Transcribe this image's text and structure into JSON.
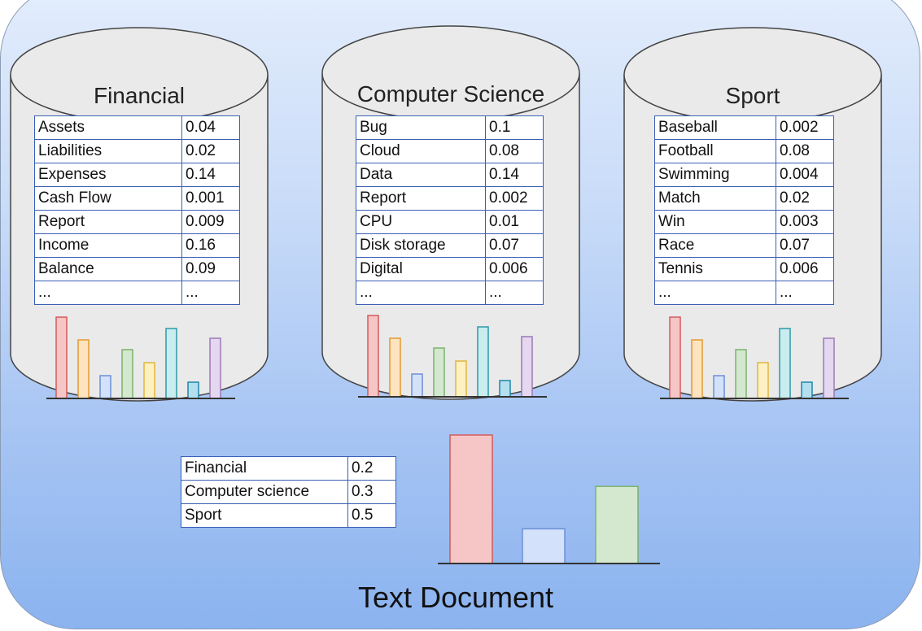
{
  "topics": [
    {
      "name": "Financial",
      "rows": [
        {
          "word": "Assets",
          "value": "0.04"
        },
        {
          "word": "Liabilities",
          "value": "0.02"
        },
        {
          "word": "Expenses",
          "value": "0.14"
        },
        {
          "word": "Cash Flow",
          "value": "0.001"
        },
        {
          "word": "Report",
          "value": "0.009"
        },
        {
          "word": "Income",
          "value": "0.16"
        },
        {
          "word": "Balance",
          "value": "0.09"
        },
        {
          "word": "...",
          "value": "..."
        }
      ]
    },
    {
      "name": "Computer Science",
      "rows": [
        {
          "word": "Bug",
          "value": "0.1"
        },
        {
          "word": "Cloud",
          "value": "0.08"
        },
        {
          "word": "Data",
          "value": "0.14"
        },
        {
          "word": "Report",
          "value": "0.002"
        },
        {
          "word": "CPU",
          "value": "0.01"
        },
        {
          "word": "Disk storage",
          "value": "0.07"
        },
        {
          "word": "Digital",
          "value": "0.006"
        },
        {
          "word": "...",
          "value": "..."
        }
      ]
    },
    {
      "name": "Sport",
      "rows": [
        {
          "word": "Baseball",
          "value": "0.002"
        },
        {
          "word": "Football",
          "value": "0.08"
        },
        {
          "word": "Swimming",
          "value": "0.004"
        },
        {
          "word": "Match",
          "value": "0.02"
        },
        {
          "word": "Win",
          "value": "0.003"
        },
        {
          "word": "Race",
          "value": "0.07"
        },
        {
          "word": "Tennis",
          "value": "0.006"
        },
        {
          "word": "...",
          "value": "..."
        }
      ]
    }
  ],
  "topic_bar_colors": [
    {
      "fill": "#f6c6c6",
      "stroke": "#d45a5a"
    },
    {
      "fill": "#fde3c0",
      "stroke": "#e39a30"
    },
    {
      "fill": "#d3e2fa",
      "stroke": "#6d8fd6"
    },
    {
      "fill": "#d4e8cf",
      "stroke": "#7ab36d"
    },
    {
      "fill": "#fdf0c3",
      "stroke": "#e0b63c"
    },
    {
      "fill": "#c9ecef",
      "stroke": "#2a9aa6"
    },
    {
      "fill": "#b4dfee",
      "stroke": "#1f86a8"
    },
    {
      "fill": "#e5d7ef",
      "stroke": "#9d79b8"
    }
  ],
  "topic_bar_levels": [
    100,
    72,
    28,
    60,
    44,
    86,
    20,
    74
  ],
  "document": {
    "title": "Text Document",
    "rows": [
      {
        "topic": "Financial",
        "value": "0.2"
      },
      {
        "topic": "Computer science",
        "value": "0.3"
      },
      {
        "topic": "Sport",
        "value": "0.5"
      }
    ],
    "bars": [
      {
        "label": "Financial",
        "level": 100,
        "fill": "#f6c6c6",
        "stroke": "#d45a5a"
      },
      {
        "label": "Computer science",
        "level": 27,
        "fill": "#d3e2fa",
        "stroke": "#6d8fd6"
      },
      {
        "label": "Sport",
        "level": 60,
        "fill": "#d4e8cf",
        "stroke": "#7ab36d"
      }
    ]
  }
}
